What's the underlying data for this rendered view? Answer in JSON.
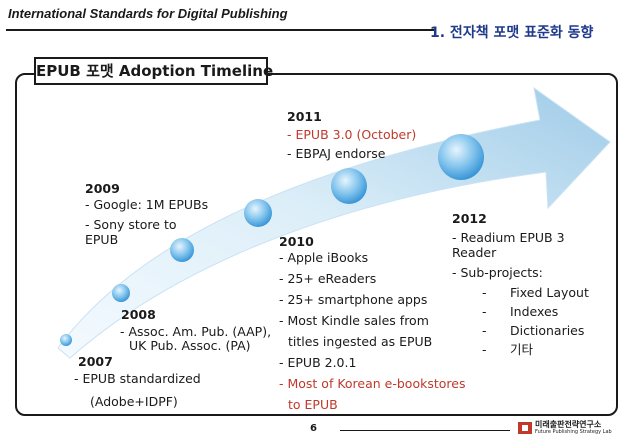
{
  "header": {
    "left_title": "International Standards for Digital Publishing",
    "right_title": "1. 전자책 포맷 표준화 동향"
  },
  "slide": {
    "title": "EPUB 포맷 Adoption Timeline"
  },
  "timeline": {
    "y2007": {
      "year": "2007",
      "lines": [
        "- EPUB standardized",
        "(Adobe+IDPF)"
      ]
    },
    "y2008": {
      "year": "2008",
      "lines": [
        "- Assoc. Am. Pub. (AAP),",
        "UK Pub. Assoc. (PA)"
      ]
    },
    "y2009": {
      "year": "2009",
      "lines": [
        "- Google: 1M EPUBs",
        "- Sony store to",
        "EPUB"
      ]
    },
    "y2010": {
      "year": "2010",
      "lines": [
        "- Apple iBooks",
        "- 25+ eReaders",
        "- 25+ smartphone apps",
        "- Most Kindle sales from",
        "titles ingested as EPUB",
        "- EPUB 2.0.1",
        "- Most of Korean e-bookstores",
        "to EPUB"
      ]
    },
    "y2011": {
      "year": "2011",
      "lines": [
        "- EPUB 3.0 (October)",
        "- EBPAJ endorse"
      ]
    },
    "y2012": {
      "year": "2012",
      "lines": [
        "- Readium EPUB 3",
        "Reader",
        "- Sub-projects:"
      ],
      "subprojects": [
        "Fixed Layout",
        "Indexes",
        "Dictionaries",
        "기타"
      ]
    }
  },
  "footer": {
    "page_number": "6",
    "logo_name": "미래출판전략연구소",
    "logo_sub": "Future Publishing Strategy Lab"
  },
  "colors": {
    "accent_red": "#c0392b",
    "header_blue": "#1f3a8a",
    "arrow_light": "#dceef8",
    "arrow_mid": "#9fcbe8",
    "dot_light": "#bfe3f7",
    "dot_dark": "#2f8fd3"
  }
}
